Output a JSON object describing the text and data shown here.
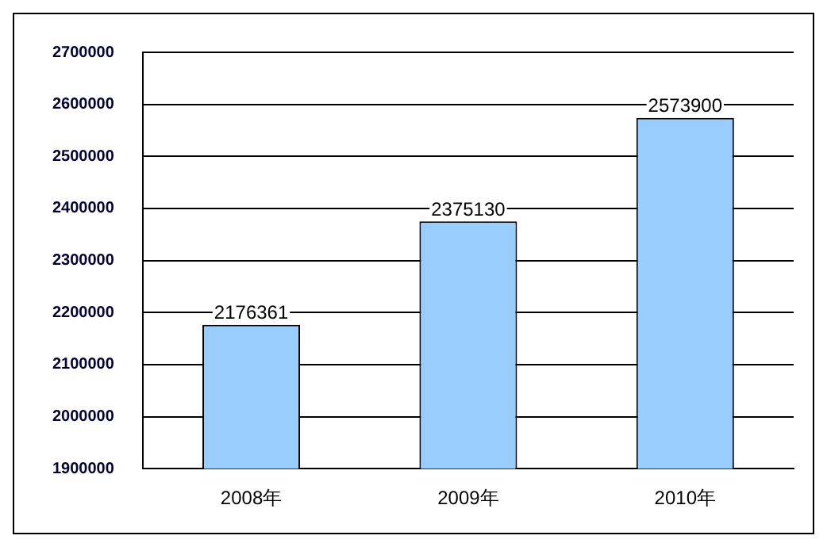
{
  "chart_data": {
    "type": "bar",
    "categories": [
      "2008年",
      "2009年",
      "2010年"
    ],
    "values": [
      2176361,
      2375130,
      2573900
    ],
    "color": "#99ccff",
    "ylim": [
      1900000,
      2700000
    ],
    "yticks": [
      1900000,
      2000000,
      2100000,
      2200000,
      2300000,
      2400000,
      2500000,
      2600000,
      2700000
    ],
    "grid": "y",
    "data_labels": true,
    "legend": false
  }
}
